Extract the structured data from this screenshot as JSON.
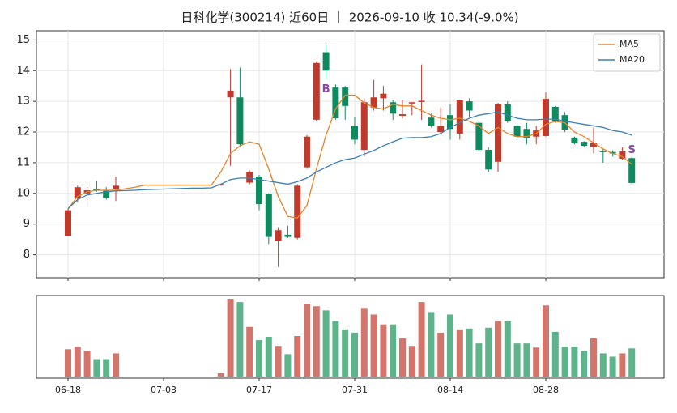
{
  "chart_data": [
    {
      "type": "candlestick",
      "title": "日科化学(300214) 近60日 ｜ 2026-09-10 收 10.34(-9.0%)",
      "categories": [
        "06-18",
        null,
        null,
        null,
        null,
        null,
        null,
        null,
        null,
        null,
        "07-03",
        null,
        null,
        null,
        null,
        null,
        null,
        null,
        null,
        null,
        "07-17",
        null,
        null,
        null,
        null,
        null,
        null,
        null,
        null,
        null,
        "07-31",
        null,
        null,
        null,
        null,
        null,
        null,
        null,
        null,
        null,
        "08-14",
        null,
        null,
        null,
        null,
        null,
        null,
        null,
        null,
        null,
        "08-28",
        null,
        null,
        null,
        null,
        null,
        null,
        null,
        null,
        null
      ],
      "open": [
        8.6,
        9.85,
        10.0,
        10.15,
        10.1,
        10.15,
        null,
        null,
        null,
        null,
        null,
        null,
        null,
        null,
        null,
        null,
        10.27,
        13.13,
        13.13,
        10.35,
        10.55,
        9.97,
        8.45,
        8.65,
        8.55,
        10.85,
        12.4,
        14.6,
        13.45,
        13.45,
        12.2,
        11.42,
        12.8,
        13.1,
        12.97,
        12.53,
        12.93,
        12.98,
        12.47,
        12.0,
        12.55,
        11.95,
        13.0,
        12.3,
        11.42,
        11.03,
        12.9,
        12.2,
        12.1,
        11.85,
        11.87,
        12.82,
        12.55,
        11.82,
        11.68,
        11.5,
        11.37,
        11.35,
        11.13,
        11.15
      ],
      "high": [
        9.5,
        10.25,
        10.2,
        10.4,
        10.2,
        10.55,
        null,
        null,
        null,
        null,
        null,
        null,
        null,
        null,
        null,
        null,
        10.32,
        14.05,
        14.1,
        10.75,
        10.6,
        10.0,
        8.9,
        8.95,
        10.3,
        11.9,
        14.3,
        14.85,
        13.55,
        13.5,
        12.5,
        13.1,
        13.7,
        13.5,
        13.05,
        13.05,
        12.97,
        14.2,
        12.6,
        12.8,
        12.9,
        13.05,
        13.1,
        12.35,
        11.5,
        12.95,
        13.0,
        12.25,
        12.3,
        12.2,
        13.3,
        12.85,
        12.65,
        11.85,
        11.7,
        12.15,
        11.45,
        11.4,
        11.5,
        11.2
      ],
      "low": [
        8.6,
        9.7,
        9.55,
        10.05,
        9.8,
        9.75,
        null,
        null,
        null,
        null,
        null,
        null,
        null,
        null,
        null,
        null,
        10.25,
        10.9,
        11.5,
        10.3,
        9.45,
        8.35,
        7.6,
        8.55,
        8.5,
        10.8,
        12.35,
        13.7,
        12.4,
        12.4,
        11.6,
        11.2,
        12.7,
        12.7,
        12.4,
        12.45,
        12.55,
        12.4,
        12.15,
        11.95,
        11.75,
        11.75,
        12.5,
        11.35,
        10.7,
        10.7,
        12.3,
        11.8,
        11.6,
        11.6,
        11.85,
        12.3,
        12.0,
        11.6,
        11.5,
        11.3,
        11.0,
        11.2,
        11.1,
        10.3
      ],
      "close": [
        9.45,
        10.2,
        10.1,
        10.1,
        9.85,
        10.25,
        null,
        null,
        null,
        null,
        null,
        null,
        null,
        null,
        null,
        null,
        10.3,
        13.35,
        11.6,
        10.7,
        9.65,
        8.58,
        8.8,
        8.58,
        10.25,
        11.85,
        14.25,
        14.0,
        12.45,
        12.85,
        11.75,
        12.97,
        13.13,
        13.25,
        12.6,
        12.58,
        12.97,
        13.02,
        12.2,
        12.2,
        12.1,
        13.03,
        12.7,
        11.42,
        10.78,
        12.92,
        12.35,
        11.85,
        11.8,
        12.05,
        13.08,
        12.35,
        12.08,
        11.63,
        11.55,
        11.65,
        11.35,
        11.3,
        11.37,
        10.34
      ],
      "up_color": "#c0392b",
      "down_color": "#0e8a5f",
      "ylim": [
        7.25,
        15.3
      ],
      "yticks": [
        8,
        9,
        10,
        11,
        12,
        13,
        14,
        15
      ],
      "grid": true,
      "legend": "upper right",
      "series": [
        {
          "name": "MA5",
          "color": "#e8822a",
          "values": [
            9.5,
            9.9,
            10.05,
            10.1,
            10.1,
            10.1,
            10.15,
            10.2,
            10.27,
            10.27,
            10.27,
            10.27,
            10.27,
            10.27,
            10.27,
            10.27,
            10.7,
            11.3,
            11.55,
            11.68,
            11.6,
            10.8,
            9.9,
            9.25,
            9.2,
            9.6,
            10.8,
            11.9,
            12.75,
            13.2,
            13.2,
            12.95,
            12.8,
            12.75,
            12.9,
            12.85,
            12.85,
            12.7,
            12.55,
            12.45,
            12.4,
            12.45,
            12.35,
            12.2,
            11.95,
            12.15,
            11.95,
            11.85,
            11.85,
            11.95,
            12.25,
            12.35,
            12.3,
            12.0,
            11.85,
            11.65,
            11.45,
            11.3,
            11.2,
            10.95
          ]
        },
        {
          "name": "MA20",
          "color": "#3a7fb5",
          "values": [
            9.5,
            9.8,
            9.95,
            10.0,
            10.05,
            10.08,
            10.09,
            10.1,
            10.12,
            10.13,
            10.14,
            10.15,
            10.16,
            10.17,
            10.17,
            10.18,
            10.3,
            10.45,
            10.5,
            10.5,
            10.45,
            10.4,
            10.35,
            10.3,
            10.38,
            10.5,
            10.7,
            10.85,
            11.0,
            11.1,
            11.15,
            11.28,
            11.4,
            11.55,
            11.68,
            11.8,
            11.82,
            11.82,
            11.85,
            11.95,
            12.15,
            12.3,
            12.45,
            12.55,
            12.6,
            12.65,
            12.55,
            12.45,
            12.4,
            12.4,
            12.42,
            12.42,
            12.35,
            12.3,
            12.25,
            12.2,
            12.15,
            12.05,
            12.0,
            11.9
          ]
        }
      ],
      "signals": [
        {
          "index": 27,
          "label": "B"
        },
        {
          "index": 59,
          "label": "S"
        }
      ],
      "signal_color": "#8e44ad"
    },
    {
      "type": "volume-bar",
      "values": [
        35,
        38,
        33,
        23,
        23,
        30,
        null,
        null,
        null,
        null,
        null,
        null,
        null,
        null,
        null,
        null,
        6,
        96,
        92,
        62,
        46,
        50,
        39,
        29,
        51,
        90,
        87,
        82,
        69,
        59,
        55,
        85,
        77,
        65,
        65,
        48,
        39,
        92,
        80,
        55,
        77,
        59,
        60,
        42,
        61,
        69,
        69,
        42,
        42,
        37,
        88,
        56,
        38,
        38,
        33,
        48,
        30,
        26,
        30,
        36
      ],
      "ylim": [
        0,
        100
      ],
      "up_color": "#d4756b",
      "down_color": "#5db38a"
    }
  ]
}
